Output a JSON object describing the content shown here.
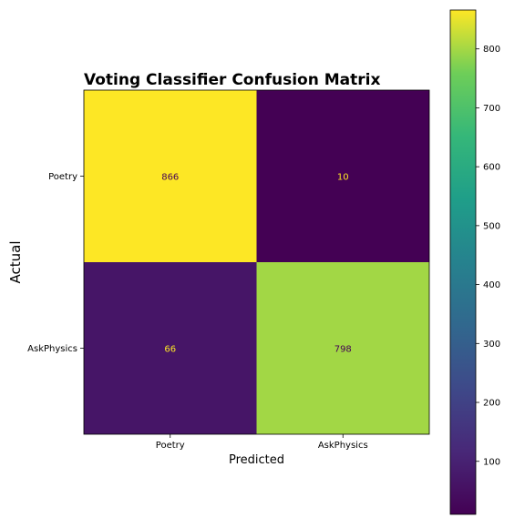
{
  "chart_data": {
    "type": "heatmap",
    "title": "Voting Classifier Confusion Matrix",
    "xlabel": "Predicted",
    "ylabel": "Actual",
    "x_categories": [
      "Poetry",
      "AskPhysics"
    ],
    "y_categories": [
      "Poetry",
      "AskPhysics"
    ],
    "values": [
      [
        866,
        10
      ],
      [
        66,
        798
      ]
    ],
    "colormap": "viridis",
    "colorbar": {
      "vmin": 10,
      "vmax": 866,
      "ticks": [
        100,
        200,
        300,
        400,
        500,
        600,
        700,
        800
      ]
    },
    "grid": false,
    "legend": "colorbar-right"
  },
  "colors": {
    "text_on_dark": "#fde725",
    "text_on_light": "#440154",
    "axis": "#000000"
  }
}
